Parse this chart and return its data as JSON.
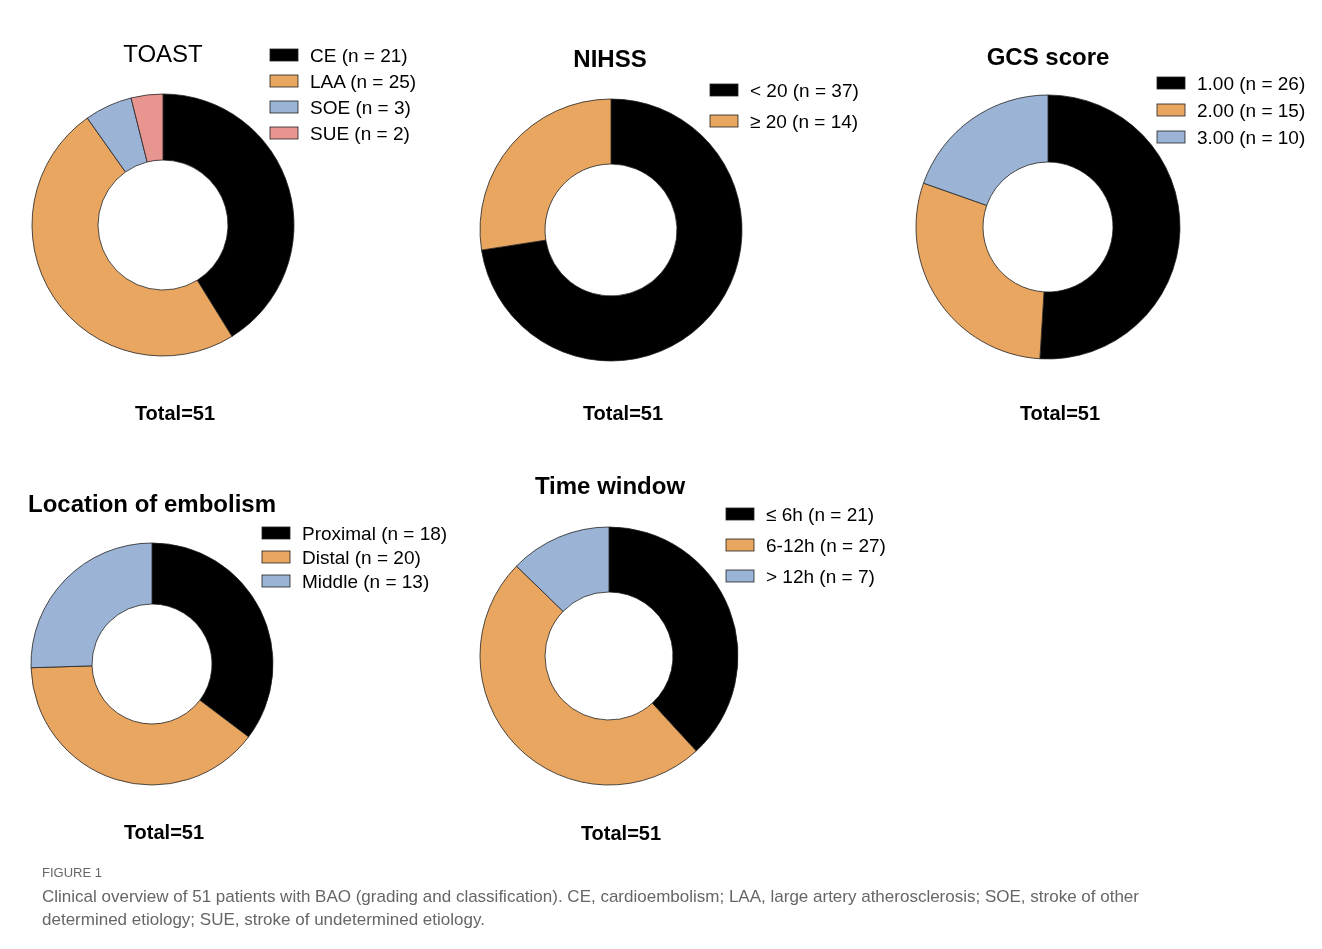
{
  "chart_data": [
    {
      "type": "donut",
      "title": "TOAST",
      "categories": [
        "CE (n = 21)",
        "LAA (n = 25)",
        "SOE (n = 3)",
        "SUE (n = 2)"
      ],
      "values": [
        21,
        25,
        3,
        2
      ],
      "colors": [
        "#000000",
        "#e8a660",
        "#9bb3d4",
        "#e8958f"
      ],
      "legend": "right",
      "annotations": [
        "Total=51"
      ]
    },
    {
      "type": "donut",
      "title": "NIHSS",
      "categories": [
        "< 20 (n = 37)",
        "≥ 20 (n = 14)"
      ],
      "values": [
        37,
        14
      ],
      "colors": [
        "#000000",
        "#e8a660"
      ],
      "legend": "right",
      "annotations": [
        "Total=51"
      ]
    },
    {
      "type": "donut",
      "title": "GCS  score",
      "categories": [
        "1.00 (n = 26)",
        "2.00 (n = 15)",
        "3.00 (n = 10)"
      ],
      "values": [
        26,
        15,
        10
      ],
      "colors": [
        "#000000",
        "#e8a660",
        "#9bb3d4"
      ],
      "legend": "right",
      "annotations": [
        "Total=51"
      ]
    },
    {
      "type": "donut",
      "title": "Location of embolism",
      "categories": [
        "Proximal (n = 18)",
        "Distal (n = 20)",
        "Middle (n = 13)"
      ],
      "values": [
        18,
        20,
        13
      ],
      "colors": [
        "#000000",
        "#e8a660",
        "#9bb3d4"
      ],
      "legend": "right",
      "annotations": [
        "Total=51"
      ]
    },
    {
      "type": "donut",
      "title": "Time window",
      "categories": [
        "≤ 6h  (n = 21)",
        "6-12h (n = 27)",
        "> 12h (n = 7)"
      ],
      "values": [
        21,
        27,
        7
      ],
      "colors": [
        "#000000",
        "#e8a660",
        "#9bb3d4"
      ],
      "legend": "right",
      "annotations": [
        "Total=51",
        "FIGURE 1",
        "Clinical overview of 51 patients with BAO (grading and classification). CE, cardioembolism; LAA, large artery atherosclerosis; SOE, stroke of other determined etiology; SUE, stroke of undetermined etiology."
      ]
    }
  ]
}
